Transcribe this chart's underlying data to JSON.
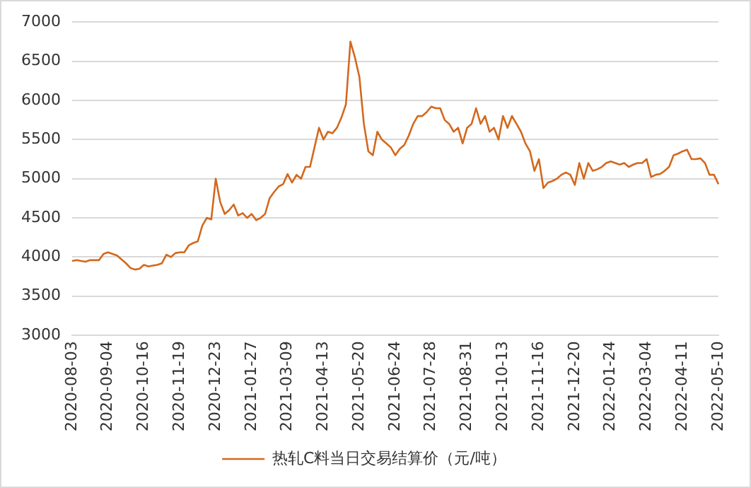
{
  "chart_data": {
    "type": "line",
    "categories": [
      "2020-08-03",
      null,
      null,
      null,
      null,
      null,
      null,
      null,
      "2020-09-04",
      null,
      null,
      null,
      null,
      null,
      null,
      null,
      "2020-10-16",
      null,
      null,
      null,
      null,
      null,
      null,
      null,
      "2020-11-19",
      null,
      null,
      null,
      null,
      null,
      null,
      null,
      "2020-12-23",
      null,
      null,
      null,
      null,
      null,
      null,
      null,
      "2021-01-27",
      null,
      null,
      null,
      null,
      null,
      null,
      null,
      "2021-03-09",
      null,
      null,
      null,
      null,
      null,
      null,
      null,
      "2021-04-13",
      null,
      null,
      null,
      null,
      null,
      null,
      null,
      "2021-05-20",
      null,
      null,
      null,
      null,
      null,
      null,
      null,
      "2021-06-24",
      null,
      null,
      null,
      null,
      null,
      null,
      null,
      "2021-07-28",
      null,
      null,
      null,
      null,
      null,
      null,
      null,
      "2021-08-31",
      null,
      null,
      null,
      null,
      null,
      null,
      null,
      "2021-10-13",
      null,
      null,
      null,
      null,
      null,
      null,
      null,
      "2021-11-16",
      null,
      null,
      null,
      null,
      null,
      null,
      null,
      "2021-12-20",
      null,
      null,
      null,
      null,
      null,
      null,
      null,
      "2022-01-24",
      null,
      null,
      null,
      null,
      null,
      null,
      null,
      "2022-03-04",
      null,
      null,
      null,
      null,
      null,
      null,
      null,
      "2022-04-11",
      null,
      null,
      null,
      null,
      null,
      null,
      null,
      "2022-05-10"
    ],
    "series": [
      {
        "name": "热轧C料当日交易结算价（元/吨）",
        "color": "#d2691e",
        "values": [
          3950,
          3960,
          3950,
          3940,
          3960,
          3960,
          3960,
          4040,
          4060,
          4040,
          4020,
          3970,
          3920,
          3860,
          3840,
          3850,
          3900,
          3880,
          3890,
          3900,
          3920,
          4030,
          4000,
          4050,
          4060,
          4060,
          4150,
          4180,
          4200,
          4400,
          4500,
          4480,
          5000,
          4700,
          4550,
          4600,
          4670,
          4530,
          4560,
          4500,
          4550,
          4470,
          4500,
          4550,
          4750,
          4830,
          4900,
          4930,
          5060,
          4950,
          5050,
          5000,
          5150,
          5150,
          5400,
          5650,
          5500,
          5600,
          5580,
          5650,
          5780,
          5950,
          6750,
          6550,
          6300,
          5700,
          5350,
          5300,
          5600,
          5500,
          5450,
          5400,
          5300,
          5380,
          5430,
          5550,
          5700,
          5800,
          5800,
          5850,
          5920,
          5900,
          5900,
          5750,
          5700,
          5600,
          5650,
          5450,
          5650,
          5700,
          5900,
          5700,
          5800,
          5600,
          5650,
          5500,
          5800,
          5650,
          5800,
          5700,
          5600,
          5450,
          5350,
          5100,
          5250,
          4880,
          4950,
          4970,
          5000,
          5050,
          5080,
          5050,
          4920,
          5200,
          5000,
          5200,
          5100,
          5120,
          5150,
          5200,
          5220,
          5200,
          5180,
          5200,
          5150,
          5180,
          5200,
          5200,
          5250,
          5020,
          5050,
          5060,
          5100,
          5150,
          5300,
          5320,
          5350,
          5370,
          5250,
          5250,
          5260,
          5200,
          5050,
          5050,
          4930
        ]
      }
    ],
    "ylim": [
      3000,
      7000
    ],
    "yticks": [
      3000,
      3500,
      4000,
      4500,
      5000,
      5500,
      6000,
      6500,
      7000
    ],
    "grid": "y",
    "legend": "bottom",
    "marker": "none",
    "line_style": "solid"
  }
}
